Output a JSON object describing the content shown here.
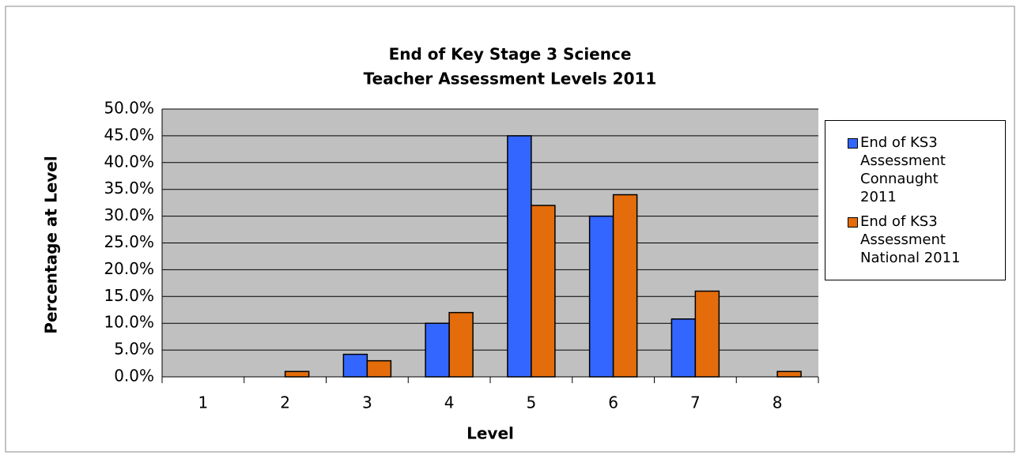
{
  "chart_data": {
    "type": "bar",
    "title": [
      "End of Key Stage 3 Science",
      "Teacher Assessment Levels 2011"
    ],
    "x_label": "Level",
    "y_label": "Percentage at Level",
    "categories": [
      "1",
      "2",
      "3",
      "4",
      "5",
      "6",
      "7",
      "8"
    ],
    "series": [
      {
        "name": "End of KS3 Assessment Connaught 2011",
        "color": "#3366ff",
        "values": [
          0,
          0,
          4.2,
          10,
          45,
          30,
          10.8,
          0
        ]
      },
      {
        "name": "End of KS3 Assessment National 2011",
        "color": "#e46c0a",
        "values": [
          0,
          1,
          3,
          12,
          32,
          34,
          16,
          1
        ]
      }
    ],
    "ylim": [
      0,
      50
    ],
    "yticks": [
      {
        "value": 0,
        "label": "0.0%"
      },
      {
        "value": 5,
        "label": "5.0%"
      },
      {
        "value": 10,
        "label": "10.0%"
      },
      {
        "value": 15,
        "label": "15.0%"
      },
      {
        "value": 20,
        "label": "20.0%"
      },
      {
        "value": 25,
        "label": "25.0%"
      },
      {
        "value": 30,
        "label": "30.0%"
      },
      {
        "value": 35,
        "label": "35.0%"
      },
      {
        "value": 40,
        "label": "40.0%"
      },
      {
        "value": 45,
        "label": "45.0%"
      },
      {
        "value": 50,
        "label": "50.0%"
      }
    ],
    "grid": true,
    "legend": "right"
  }
}
